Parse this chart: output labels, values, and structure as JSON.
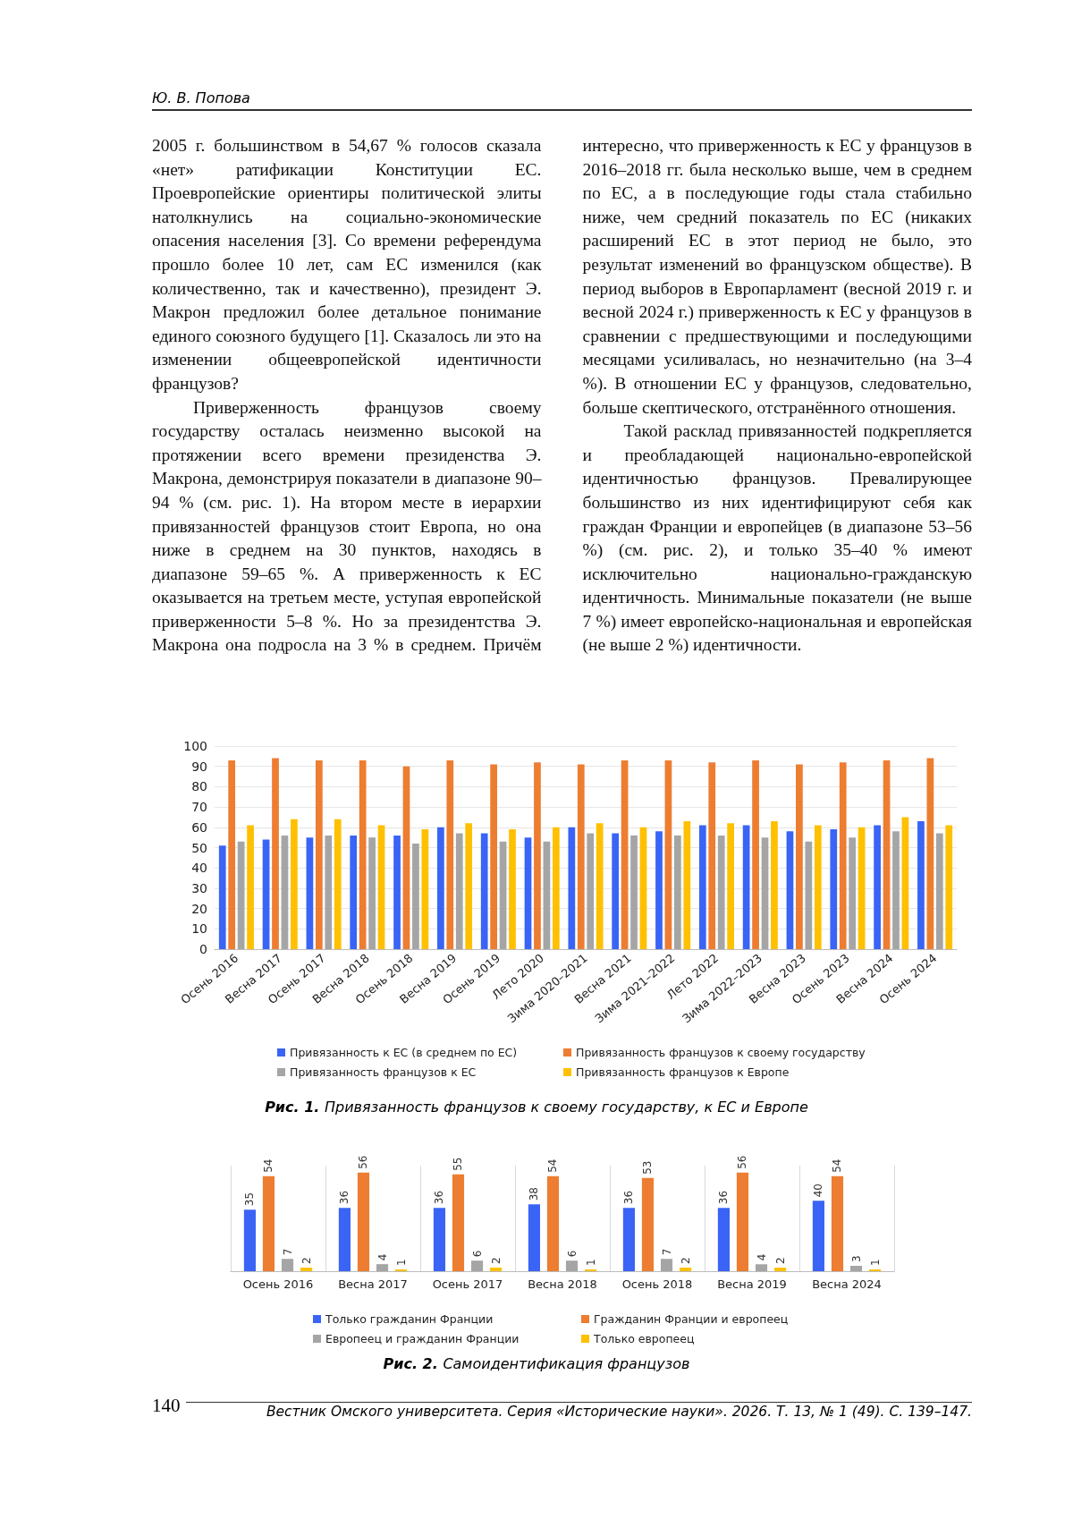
{
  "chart_data": [
    {
      "type": "bar",
      "title": "Рис. 1. Привязанность французов к своему государству, к ЕС и Европе",
      "annotations": [
        "Ю. В. Попова",
        "2005 г. большинством в 54,67 % голосов сказала «нет» ратификации Конституции ЕС. Проевропейские ориентиры политической элиты натолкнулись на социально-экономические опасения населения [3]. Со времени референдума прошло более 10 лет, сам ЕС изменился (как количественно, так и качественно), президент Э. Макрон предложил более детальное понимание единого союзного будущего [1]. Сказалось ли это на изменении общеевропейской идентичности французов?",
        "Приверженность французов своему государству осталась неизменно высокой на протяжении всего времени президенства Э. Макрона, демонстрируя показатели в диапазоне 90–94 % (см. рис. 1). На втором месте в иерархии привязанностей французов стоит Европа, но она ниже в среднем на 30 пунктов, находясь в диапазоне 59–65 %. А приверженность к ЕС оказывается на третьем месте, уступая европейской приверженности 5–8 %. Но за президентства Э. Макрона она подросла на 3 % в среднем. Причём интересно, что приверженность к ЕС у французов в 2016–2018 гг. была несколько выше, чем в среднем по ЕС, а в последующие годы стала стабильно ниже, чем средний показатель по ЕС (никаких расширений ЕС в этот период не было, это результат изменений во французском обществе). В период выборов в Европарламент (весной 2019 г. и весной 2024 г.) приверженность к ЕС у французов в сравнении с предшествующими и последующими месяцами усиливалась, но незначительно (на 3–4 %). В отношении ЕС у французов, следовательно, больше скептического, отстранённого отношения.",
        "Такой расклад привязанностей подкрепляется и преобладающей национально-европейской идентичностью французов. Превалирующее большинство из них идентифицируют себя как граждан Франции и европейцев (в диапазоне 53–56 %) (см. рис. 2), и только 35–40 % имеют исключительно национально-гражданскую идентичность. Минимальные показатели (не выше 7 %) имеет европейско-национальная и европейская (не выше 2 %) идентичности."
      ],
      "categories": [
        "Осень 2016",
        "Весна 2017",
        "Осень 2017",
        "Весна 2018",
        "Осень 2018",
        "Весна 2019",
        "Осень 2019",
        "Лето 2020",
        "Зима 2020–2021",
        "Весна 2021",
        "Зима 2021–2022",
        "Лето 2022",
        "Зима 2022–2023",
        "Весна 2023",
        "Осень 2023",
        "Весна 2024",
        "Осень 2024"
      ],
      "series": [
        {
          "name": "Привязанность к ЕС (в среднем по ЕС)",
          "color": "#3a64f5",
          "values": [
            51,
            54,
            55,
            56,
            56,
            60,
            57,
            55,
            60,
            57,
            58,
            61,
            61,
            58,
            59,
            61,
            63
          ]
        },
        {
          "name": "Привязанность французов к своему государству",
          "color": "#ed7d31",
          "values": [
            93,
            94,
            93,
            93,
            90,
            93,
            91,
            92,
            91,
            93,
            93,
            92,
            93,
            91,
            92,
            93,
            94
          ]
        },
        {
          "name": "Привязанность французов к ЕС",
          "color": "#a5a5a5",
          "values": [
            53,
            56,
            56,
            55,
            52,
            57,
            53,
            53,
            57,
            56,
            56,
            56,
            55,
            53,
            55,
            58,
            57
          ]
        },
        {
          "name": "Привязанность французов к Европе",
          "color": "#ffc000",
          "values": [
            61,
            64,
            64,
            61,
            59,
            62,
            59,
            60,
            62,
            60,
            63,
            62,
            63,
            61,
            60,
            65,
            61
          ]
        }
      ],
      "ylim": [
        0,
        100
      ],
      "yticks": [
        0,
        10,
        20,
        30,
        40,
        50,
        60,
        70,
        80,
        90,
        100
      ],
      "grid": "y",
      "legend": "bottom"
    },
    {
      "type": "bar",
      "title": "Рис. 2. Самоидентификация французов",
      "annotations": [
        "140",
        "Вестник Омского университета. Серия «Исторические науки». 2026. Т. 13, № 1 (49). С. 139–147."
      ],
      "categories": [
        "Осень 2016",
        "Весна 2017",
        "Осень 2017",
        "Весна 2018",
        "Осень 2018",
        "Весна 2019",
        "Весна 2024"
      ],
      "series": [
        {
          "name": "Только гражданин Франции",
          "color": "#3a64f5",
          "values": [
            35,
            36,
            36,
            38,
            36,
            36,
            40
          ]
        },
        {
          "name": "Гражданин Франции и европеец",
          "color": "#ed7d31",
          "values": [
            54,
            56,
            55,
            54,
            53,
            56,
            54
          ]
        },
        {
          "name": "Европеец и гражданин Франции",
          "color": "#a5a5a5",
          "values": [
            7,
            4,
            6,
            6,
            7,
            4,
            3
          ]
        },
        {
          "name": "Только европеец",
          "color": "#ffc000",
          "values": [
            2,
            1,
            2,
            1,
            2,
            2,
            1
          ]
        }
      ],
      "data_labels": true,
      "tick_labels": "x",
      "grid": "x",
      "legend": "bottom"
    }
  ]
}
